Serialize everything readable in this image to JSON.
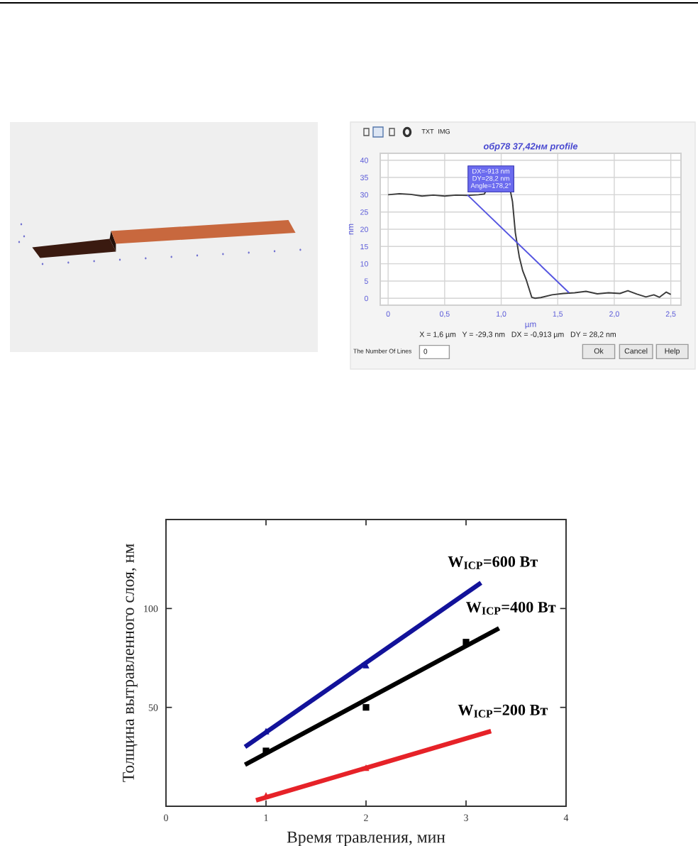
{
  "chart_data": [
    {
      "type": "line",
      "title": "обр78 37,42нм profile",
      "xlabel": "µm",
      "ylabel": "nm",
      "x": [
        0,
        0.1,
        0.2,
        0.3,
        0.4,
        0.5,
        0.6,
        0.7,
        0.8,
        0.85,
        0.87,
        1.08,
        1.1,
        1.125,
        1.16,
        1.19,
        1.22,
        1.27,
        1.3,
        1.35,
        1.45,
        1.55,
        1.65,
        1.75,
        1.85,
        1.95,
        2.05,
        2.12,
        2.2,
        2.28,
        2.35,
        2.4,
        2.46,
        2.5
      ],
      "series": [
        {
          "color": "#3a3a3a",
          "values": [
            30.0,
            30.3,
            30.1,
            29.6,
            29.9,
            29.6,
            29.9,
            29.8,
            30.0,
            30.2,
            31.3,
            31.3,
            28,
            19,
            12,
            8,
            5.5,
            0.3,
            0.0,
            0.2,
            1.0,
            1.4,
            1.6,
            2.0,
            1.3,
            1.6,
            1.4,
            2.2,
            1.2,
            0.4,
            1.0,
            0.3,
            1.8,
            1.1
          ]
        },
        {
          "type": "line",
          "color": "#5555e0",
          "x": [
            0.7,
            1.6
          ],
          "values": [
            30,
            1.6
          ]
        }
      ],
      "xlim": [
        -0.07,
        2.59
      ],
      "ylim": [
        -2,
        42
      ],
      "xticks": [
        0,
        {
          "value": 0.5,
          "label": "0,5"
        },
        {
          "value": 1,
          "label": "1,0"
        },
        {
          "value": 1.5,
          "label": "1,5"
        },
        {
          "value": 2,
          "label": "2,0"
        },
        {
          "value": 2.5,
          "label": "2,5"
        }
      ],
      "yticks": [
        0,
        5,
        10,
        15,
        20,
        25,
        30,
        35,
        40
      ],
      "grid": true,
      "annotations": [
        {
          "text": "DX=-913 nm\nDY=28,2 nm\nAngle=178,2°",
          "x": 0.7,
          "y": 30
        },
        "X = 1,6 µm   Y = -29,3 nm   DX = -0,913 µm   DY = 28,2 nm",
        "TXT",
        "IMG",
        "The Number Of Lines",
        "0",
        "Ok",
        "Cancel",
        "Help"
      ]
    },
    {
      "type": "line",
      "xlabel": "Время травления, мин",
      "ylabel": "Толщина вытравленного слоя, нм",
      "series": [
        {
          "name": "W$_{ICP}$=600 Вт",
          "type": "line",
          "color": "#12129a",
          "x": [
            0.79,
            3.15
          ],
          "values": [
            30,
            113
          ]
        },
        {
          "type": "scatter",
          "color": "#12129a",
          "marker": "triangle",
          "x": [
            1,
            2
          ],
          "values": [
            38,
            71.4
          ]
        },
        {
          "name": "W$_{ICP}$=400 Вт",
          "type": "line",
          "color": "#000000",
          "x": [
            0.79,
            3.33
          ],
          "values": [
            21,
            90
          ]
        },
        {
          "type": "scatter",
          "color": "#000000",
          "marker": "square",
          "x": [
            1,
            2,
            3
          ],
          "values": [
            28,
            50,
            83
          ]
        },
        {
          "name": "W$_{ICP}$=200 Вт",
          "type": "line",
          "color": "#e62228",
          "x": [
            0.9,
            3.25
          ],
          "values": [
            3,
            38
          ]
        },
        {
          "type": "scatter",
          "color": "#e62228",
          "marker": "triangle",
          "x": [
            1,
            2
          ],
          "values": [
            5.5,
            19.5
          ]
        }
      ],
      "xlim": [
        0,
        4
      ],
      "ylim": [
        0,
        145
      ],
      "xticks": [
        0,
        1,
        2,
        3,
        4
      ],
      "yticks": [
        {
          "value": 0,
          "label": null
        },
        50,
        100
      ]
    }
  ]
}
